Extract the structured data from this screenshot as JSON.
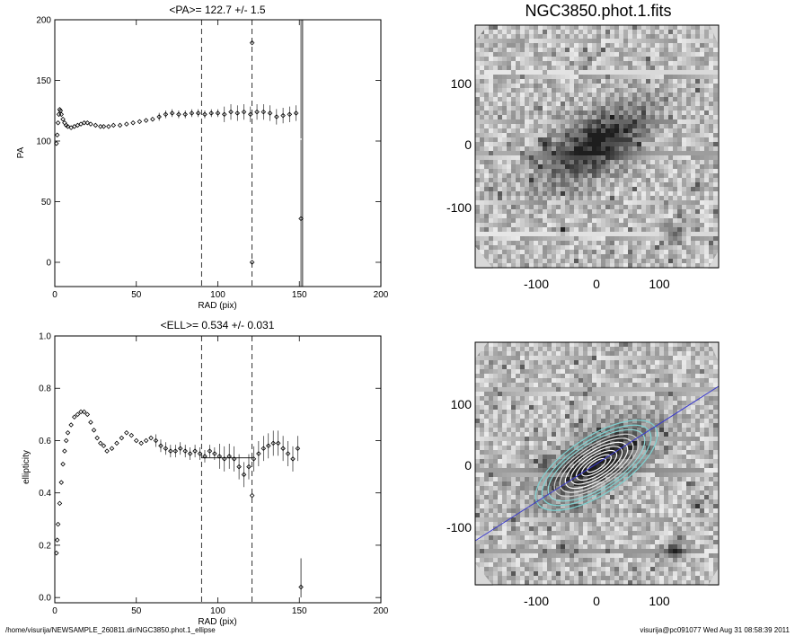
{
  "footer": {
    "path": "/home/visurija/NEWSAMPLE_260811.dir/NGC3850.phot.1_ellipse",
    "user_stamp": "visurija@pc091077  Wed Aug 31 08:58:39 2011"
  },
  "image_panel": {
    "title": "NGC3850.phot.1.fits",
    "top_ticks_x": [
      "-100",
      "0",
      "100"
    ],
    "top_ticks_y": [
      "100",
      "0",
      "-100"
    ],
    "bottom_ticks_x": [
      "-100",
      "0",
      "100"
    ],
    "bottom_ticks_y": [
      "100",
      "0",
      "-100"
    ],
    "contour_color": "#7fd0d0",
    "line_color": "#3a3ad0"
  },
  "chart_data": [
    {
      "type": "scatter",
      "title": "<PA>= 122.7 +/-   1.5",
      "xlabel": "RAD (pix)",
      "ylabel": "PA",
      "xlim": [
        0,
        200
      ],
      "ylim": [
        -20,
        200
      ],
      "x_ticks": [
        0,
        50,
        100,
        150,
        200
      ],
      "y_ticks": [
        0,
        50,
        100,
        150,
        200
      ],
      "vlines": [
        90,
        121,
        152
      ],
      "points": [
        [
          1,
          98
        ],
        [
          1.5,
          105
        ],
        [
          2,
          115
        ],
        [
          2.5,
          122
        ],
        [
          3,
          126
        ],
        [
          3.5,
          125
        ],
        [
          4,
          122
        ],
        [
          5,
          118
        ],
        [
          6,
          115
        ],
        [
          7,
          113
        ],
        [
          8,
          112
        ],
        [
          10,
          111
        ],
        [
          12,
          112
        ],
        [
          14,
          113
        ],
        [
          16,
          114
        ],
        [
          18,
          115
        ],
        [
          20,
          115
        ],
        [
          22,
          114
        ],
        [
          25,
          113
        ],
        [
          28,
          112
        ],
        [
          30,
          112
        ],
        [
          33,
          112
        ],
        [
          36,
          113
        ],
        [
          40,
          113
        ],
        [
          44,
          114
        ],
        [
          48,
          115
        ],
        [
          52,
          116
        ],
        [
          56,
          117
        ],
        [
          60,
          118
        ],
        [
          64,
          120
        ],
        [
          68,
          122
        ],
        [
          72,
          123
        ],
        [
          76,
          122
        ],
        [
          80,
          122
        ],
        [
          84,
          123
        ],
        [
          88,
          123
        ],
        [
          92,
          122
        ],
        [
          96,
          123
        ],
        [
          100,
          123
        ],
        [
          104,
          122
        ],
        [
          108,
          124
        ],
        [
          112,
          123
        ],
        [
          116,
          124
        ],
        [
          120,
          122
        ],
        [
          124,
          124
        ],
        [
          128,
          124
        ],
        [
          132,
          123
        ],
        [
          136,
          120
        ],
        [
          140,
          121
        ],
        [
          144,
          122
        ],
        [
          148,
          123
        ]
      ],
      "outliers": [
        [
          121,
          181
        ],
        [
          121,
          0
        ],
        [
          151,
          36
        ]
      ],
      "errorbar_segments": [
        [
          151,
          102,
          200
        ],
        [
          151,
          -20,
          101
        ]
      ]
    },
    {
      "type": "scatter",
      "title": "<ELL>= 0.534 +/-  0.031",
      "xlabel": "RAD (pix)",
      "ylabel": "ellipticity",
      "xlim": [
        0,
        200
      ],
      "ylim": [
        -0.02,
        1.0
      ],
      "x_ticks": [
        0,
        50,
        100,
        150,
        200
      ],
      "y_ticks": [
        0.0,
        0.2,
        0.4,
        0.6,
        0.8,
        1.0
      ],
      "vlines": [
        90,
        121
      ],
      "hline": {
        "value": 0.534,
        "x": [
          90,
          121
        ]
      },
      "points": [
        [
          1,
          0.17
        ],
        [
          1.5,
          0.22
        ],
        [
          2,
          0.28
        ],
        [
          3,
          0.36
        ],
        [
          4,
          0.44
        ],
        [
          5,
          0.51
        ],
        [
          6,
          0.56
        ],
        [
          7,
          0.6
        ],
        [
          8,
          0.63
        ],
        [
          10,
          0.66
        ],
        [
          12,
          0.69
        ],
        [
          14,
          0.7
        ],
        [
          16,
          0.71
        ],
        [
          18,
          0.71
        ],
        [
          20,
          0.7
        ],
        [
          22,
          0.67
        ],
        [
          24,
          0.64
        ],
        [
          26,
          0.61
        ],
        [
          28,
          0.59
        ],
        [
          30,
          0.58
        ],
        [
          32,
          0.56
        ],
        [
          35,
          0.57
        ],
        [
          38,
          0.59
        ],
        [
          41,
          0.61
        ],
        [
          44,
          0.63
        ],
        [
          47,
          0.62
        ],
        [
          50,
          0.6
        ],
        [
          53,
          0.59
        ],
        [
          56,
          0.6
        ],
        [
          59,
          0.61
        ],
        [
          62,
          0.6
        ],
        [
          65,
          0.58
        ],
        [
          68,
          0.57
        ],
        [
          71,
          0.56
        ],
        [
          74,
          0.56
        ],
        [
          77,
          0.57
        ],
        [
          80,
          0.56
        ],
        [
          83,
          0.55
        ],
        [
          86,
          0.56
        ],
        [
          89,
          0.55
        ],
        [
          92,
          0.54
        ],
        [
          95,
          0.56
        ],
        [
          98,
          0.55
        ],
        [
          101,
          0.54
        ],
        [
          104,
          0.53
        ],
        [
          107,
          0.54
        ],
        [
          110,
          0.53
        ],
        [
          113,
          0.5
        ],
        [
          116,
          0.47
        ],
        [
          119,
          0.5
        ],
        [
          122,
          0.53
        ],
        [
          125,
          0.55
        ],
        [
          128,
          0.57
        ],
        [
          131,
          0.58
        ],
        [
          134,
          0.59
        ],
        [
          137,
          0.59
        ],
        [
          140,
          0.57
        ],
        [
          143,
          0.55
        ],
        [
          146,
          0.53
        ],
        [
          149,
          0.57
        ]
      ],
      "outliers": [
        [
          121,
          0.39
        ],
        [
          151,
          0.04
        ]
      ],
      "errorbar_segments": [
        [
          151,
          0.0,
          0.15
        ]
      ]
    }
  ]
}
